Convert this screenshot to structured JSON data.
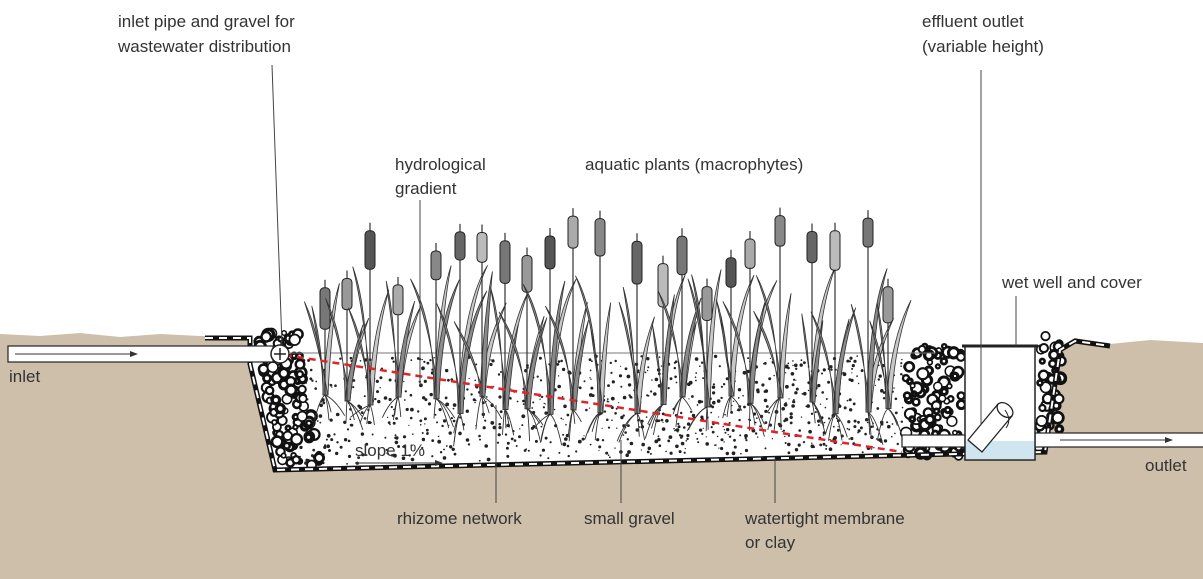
{
  "labels": {
    "inlet_pipe": [
      "inlet pipe and gravel for",
      "wastewater distribution"
    ],
    "effluent_outlet": [
      "effluent outlet",
      "(variable height)"
    ],
    "hydrological_gradient": [
      "hydrological",
      "gradient"
    ],
    "aquatic_plants": [
      "aquatic plants (macrophytes)"
    ],
    "wet_well": [
      "wet well and cover"
    ],
    "inlet": [
      "inlet"
    ],
    "outlet": [
      "outlet"
    ],
    "slope": [
      "slope 1%"
    ],
    "rhizome": [
      "rhizome network"
    ],
    "small_gravel": [
      "small gravel"
    ],
    "membrane": [
      "watertight membrane",
      "or clay"
    ]
  }
}
